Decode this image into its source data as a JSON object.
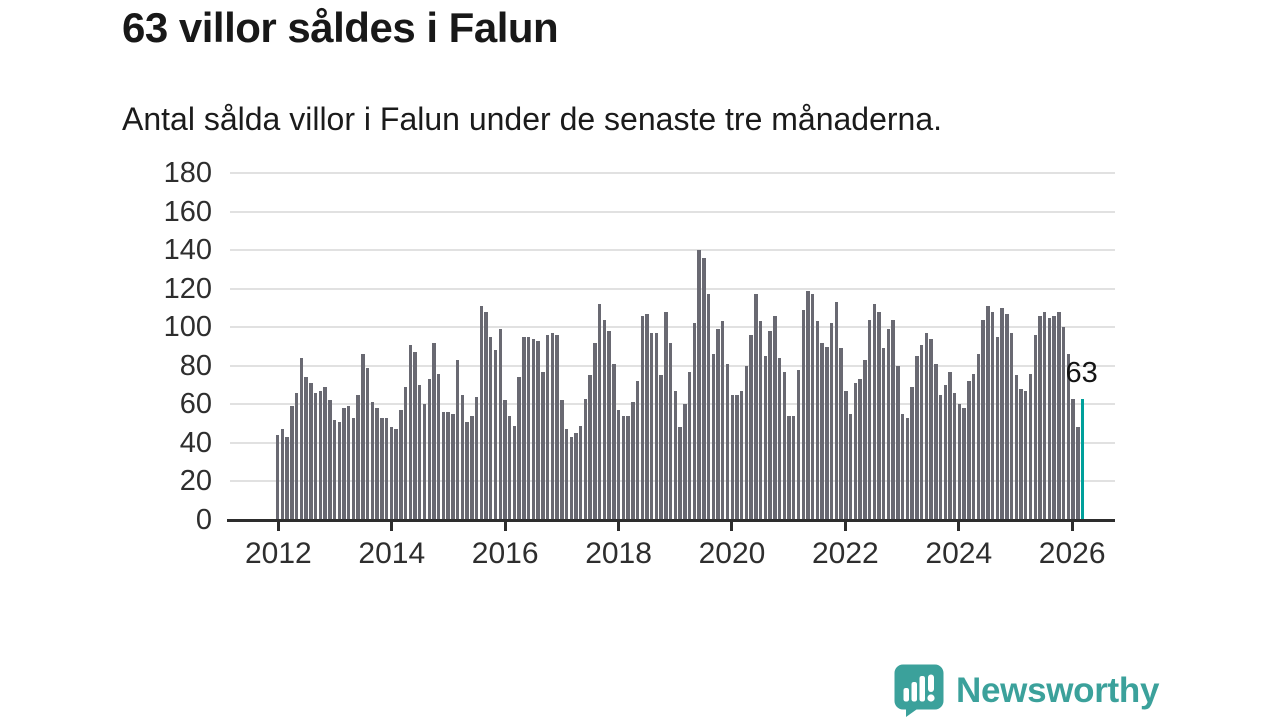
{
  "header": {
    "title": "63 villor såldes i Falun",
    "subtitle": "Antal sålda villor i Falun under de senaste tre månaderna."
  },
  "chart_data": {
    "type": "bar",
    "title": "63 villor såldes i Falun",
    "subtitle": "Antal sålda villor i Falun under de senaste tre månaderna.",
    "x_start": "2012-01",
    "x_end": "2026-03",
    "frequency": "monthly",
    "x_tick_labels": [
      "2012",
      "2014",
      "2016",
      "2018",
      "2020",
      "2022",
      "2024",
      "2026"
    ],
    "y_tick_labels": [
      "0",
      "20",
      "40",
      "60",
      "80",
      "100",
      "120",
      "140",
      "160",
      "180"
    ],
    "ylim": [
      0,
      180
    ],
    "grid": true,
    "legend": "none",
    "values": [
      44,
      47,
      43,
      59,
      66,
      84,
      74,
      71,
      66,
      67,
      69,
      62,
      52,
      51,
      58,
      59,
      53,
      65,
      86,
      79,
      61,
      58,
      53,
      53,
      48,
      47,
      57,
      69,
      91,
      87,
      70,
      60,
      73,
      92,
      76,
      56,
      56,
      55,
      83,
      65,
      51,
      54,
      64,
      111,
      108,
      95,
      88,
      99,
      62,
      54,
      49,
      74,
      95,
      95,
      94,
      93,
      77,
      96,
      97,
      96,
      62,
      47,
      43,
      45,
      49,
      63,
      75,
      92,
      112,
      104,
      98,
      81,
      57,
      54,
      54,
      61,
      72,
      106,
      107,
      97,
      97,
      75,
      108,
      92,
      67,
      48,
      60,
      77,
      102,
      140,
      136,
      117,
      86,
      99,
      103,
      81,
      65,
      65,
      67,
      80,
      96,
      117,
      103,
      85,
      98,
      106,
      84,
      77,
      54,
      54,
      78,
      109,
      119,
      117,
      103,
      92,
      90,
      102,
      113,
      89,
      67,
      55,
      71,
      73,
      83,
      104,
      112,
      108,
      89,
      99,
      104,
      80,
      55,
      53,
      69,
      85,
      91,
      97,
      94,
      81,
      65,
      70,
      77,
      66,
      60,
      58,
      72,
      76,
      86,
      104,
      111,
      108,
      95,
      110,
      107,
      97,
      75,
      68,
      67,
      76,
      96,
      106,
      108,
      105,
      106,
      108,
      100,
      86,
      63,
      48,
      63
    ],
    "highlight": {
      "index": 170,
      "value": 63,
      "label": "63",
      "color": "#00a09b"
    },
    "bar_color": "#696972",
    "grid_color": "#e1e1e1",
    "axis_color": "#2d2d2d"
  },
  "footer": {
    "brand": "Newsworthy",
    "brand_color": "#3ba19b",
    "logo_icon": "bar-chart-exclamation-bubble-icon"
  }
}
